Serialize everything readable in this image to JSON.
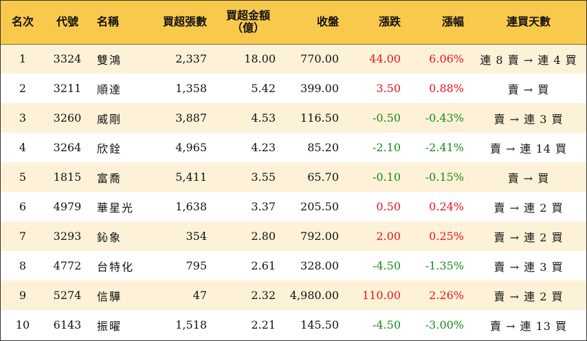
{
  "table": {
    "headers": {
      "rank": "名次",
      "code": "代號",
      "name": "名稱",
      "net_buy_lots": "買超張數",
      "net_buy_amount_line1": "買超金額",
      "net_buy_amount_line2": "（億）",
      "close": "收盤",
      "change": "漲跌",
      "change_pct": "漲幅",
      "consecutive_buy_days": "連買天數"
    },
    "rows": [
      {
        "rank": "1",
        "code": "3324",
        "name": "雙鴻",
        "lots": "2,337",
        "amount": "18.00",
        "close": "770.00",
        "change": "44.00",
        "pct": "6.06%",
        "days": "連 8 賣 → 連 4 買",
        "dir": "up"
      },
      {
        "rank": "2",
        "code": "3211",
        "name": "順達",
        "lots": "1,358",
        "amount": "5.42",
        "close": "399.00",
        "change": "3.50",
        "pct": "0.88%",
        "days": "賣 → 買",
        "dir": "up"
      },
      {
        "rank": "3",
        "code": "3260",
        "name": "威剛",
        "lots": "3,887",
        "amount": "4.53",
        "close": "116.50",
        "change": "-0.50",
        "pct": "-0.43%",
        "days": "賣 → 連 3 買",
        "dir": "down"
      },
      {
        "rank": "4",
        "code": "3264",
        "name": "欣銓",
        "lots": "4,965",
        "amount": "4.23",
        "close": "85.20",
        "change": "-2.10",
        "pct": "-2.41%",
        "days": "賣 → 連 14 買",
        "dir": "down"
      },
      {
        "rank": "5",
        "code": "1815",
        "name": "富喬",
        "lots": "5,411",
        "amount": "3.55",
        "close": "65.70",
        "change": "-0.10",
        "pct": "-0.15%",
        "days": "賣 → 買",
        "dir": "down"
      },
      {
        "rank": "6",
        "code": "4979",
        "name": "華星光",
        "lots": "1,638",
        "amount": "3.37",
        "close": "205.50",
        "change": "0.50",
        "pct": "0.24%",
        "days": "賣 → 連 2 買",
        "dir": "up"
      },
      {
        "rank": "7",
        "code": "3293",
        "name": "鈊象",
        "lots": "354",
        "amount": "2.80",
        "close": "792.00",
        "change": "2.00",
        "pct": "0.25%",
        "days": "賣 → 連 2 買",
        "dir": "up"
      },
      {
        "rank": "8",
        "code": "4772",
        "name": "台特化",
        "lots": "795",
        "amount": "2.61",
        "close": "328.00",
        "change": "-4.50",
        "pct": "-1.35%",
        "days": "賣 → 連 3 買",
        "dir": "down"
      },
      {
        "rank": "9",
        "code": "5274",
        "name": "信驊",
        "lots": "47",
        "amount": "2.32",
        "close": "4,980.00",
        "change": "110.00",
        "pct": "2.26%",
        "days": "賣 → 連 2 買",
        "dir": "up"
      },
      {
        "rank": "10",
        "code": "6143",
        "name": "振曜",
        "lots": "1,518",
        "amount": "2.21",
        "close": "145.50",
        "change": "-4.50",
        "pct": "-3.00%",
        "days": "賣 → 連 13 買",
        "dir": "down"
      }
    ],
    "colors": {
      "header_bg": "#f9c94d",
      "alt_row_bg": "#fdf2d8",
      "up": "#e8141b",
      "down": "#1a8a1a"
    }
  }
}
